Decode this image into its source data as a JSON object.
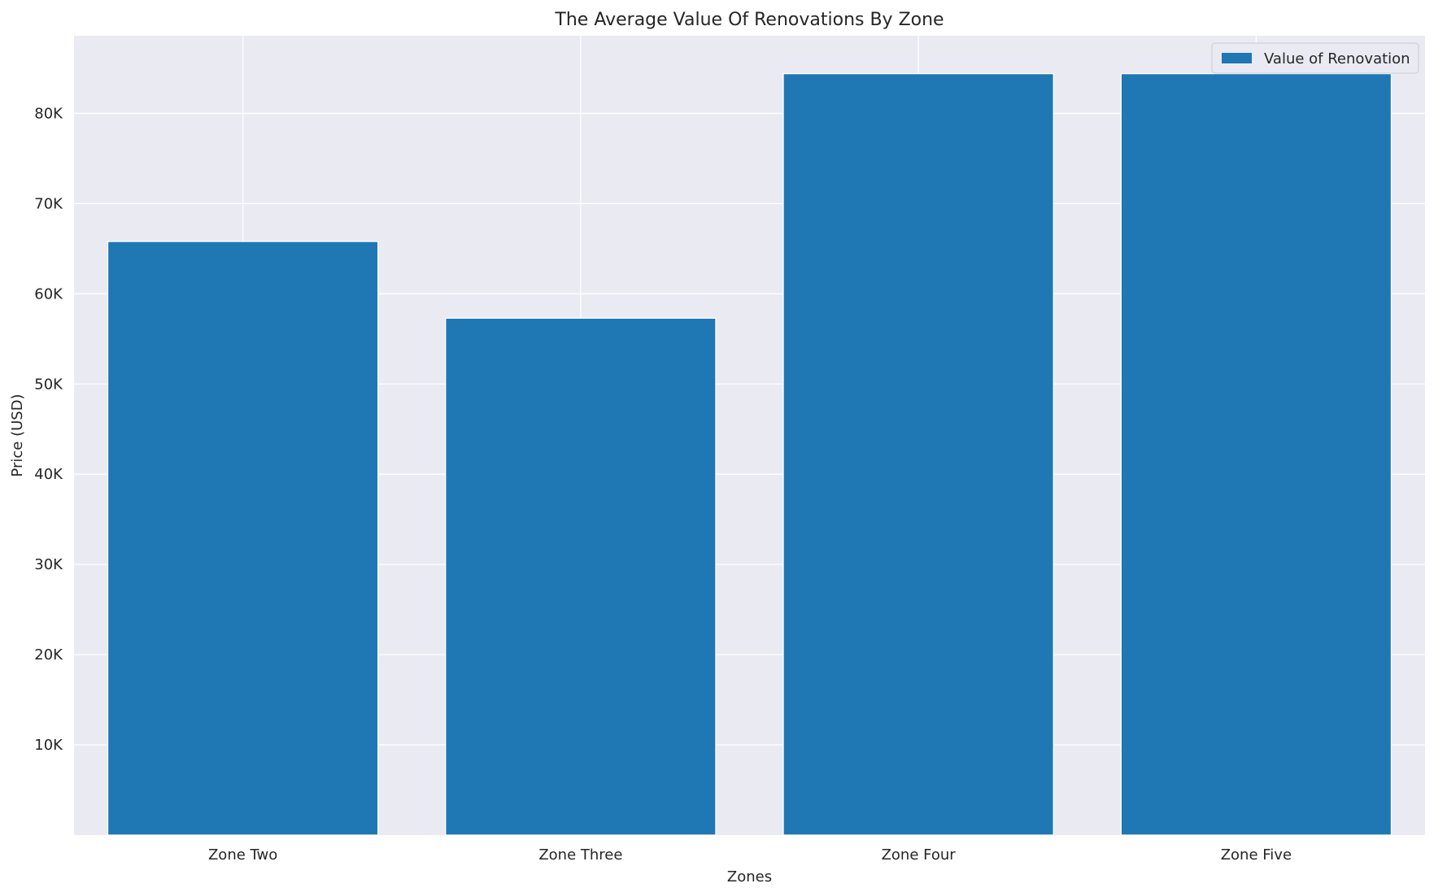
{
  "chart_data": {
    "type": "bar",
    "title": "The Average Value Of Renovations By Zone",
    "xlabel": "Zones",
    "ylabel": "Price (USD)",
    "categories": [
      "Zone Two",
      "Zone Three",
      "Zone Four",
      "Zone Five"
    ],
    "series": [
      {
        "name": "Value of Renovation",
        "values": [
          65800,
          57300,
          84400,
          84400
        ]
      }
    ],
    "ylim": [
      0,
      88600
    ],
    "yticks": [
      10000,
      20000,
      30000,
      40000,
      50000,
      60000,
      70000,
      80000
    ],
    "ytick_labels": [
      "10K",
      "20K",
      "30K",
      "40K",
      "50K",
      "60K",
      "70K",
      "80K"
    ],
    "grid": true,
    "legend": "top-right",
    "colors": {
      "bar": "#1f77b4",
      "plot_background": "#eaeaf2",
      "grid": "#ffffff"
    }
  }
}
